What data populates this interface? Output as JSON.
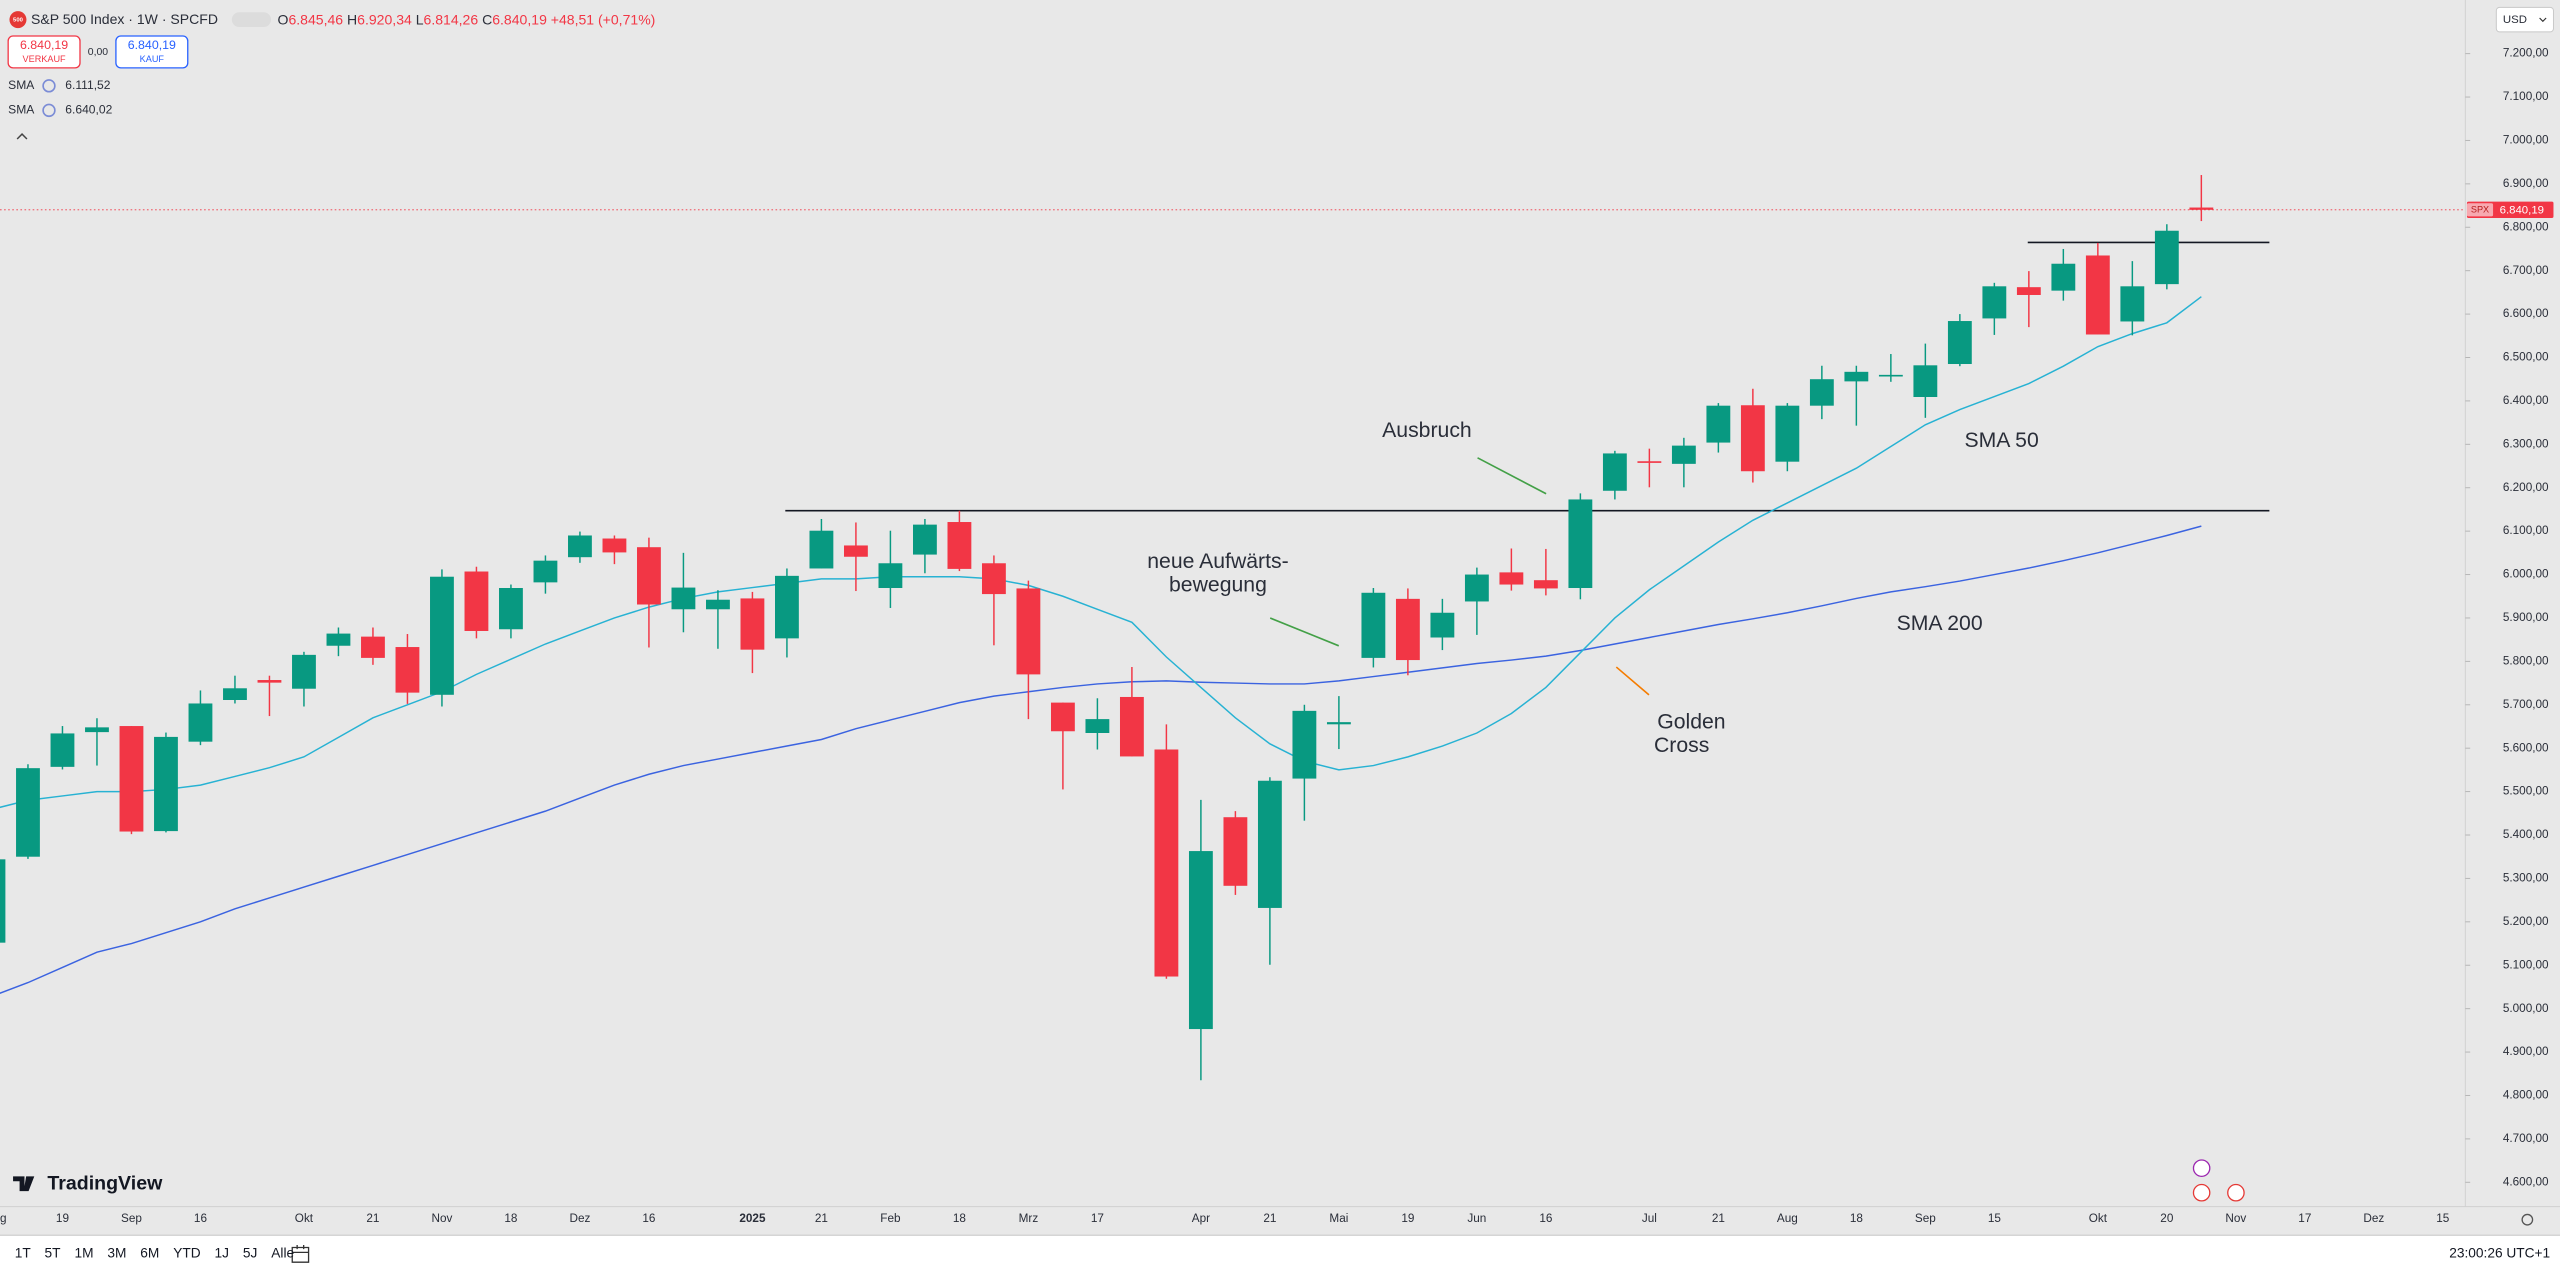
{
  "header": {
    "title": "S&P 500 Index · 1W · SPCFD",
    "ohlc": [
      {
        "key": "O",
        "value": "6.845,46"
      },
      {
        "key": "H",
        "value": "6.920,34"
      },
      {
        "key": "L",
        "value": "6.814,26"
      },
      {
        "key": "C",
        "value": "6.840,19"
      }
    ],
    "change": "+48,51 (+0,71%)",
    "sell": {
      "price": "6.840,19",
      "label": "VERKAUF"
    },
    "spread": "0,00",
    "buy": {
      "price": "6.840,19",
      "label": "KAUF"
    },
    "currency": "USD"
  },
  "brand": "TradingView",
  "toolbar": {
    "ranges": [
      "1T",
      "5T",
      "1M",
      "3M",
      "6M",
      "YTD",
      "1J",
      "5J",
      "Alle"
    ],
    "time": "23:00:26 UTC+1"
  },
  "chart_data": {
    "type": "candlestick",
    "categories": [
      "g",
      null,
      "19",
      null,
      "Sep",
      null,
      "16",
      null,
      null,
      "Okt",
      null,
      "21",
      null,
      "Nov",
      null,
      "18",
      null,
      "Dez",
      null,
      "16",
      null,
      null,
      "2025",
      null,
      "21",
      null,
      "Feb",
      null,
      "18",
      null,
      "Mrz",
      null,
      "17",
      null,
      null,
      "Apr",
      null,
      "21",
      null,
      "Mai",
      null,
      "19",
      null,
      "Jun",
      null,
      "16",
      null,
      null,
      "Jul",
      null,
      "21",
      null,
      "Aug",
      null,
      "18",
      null,
      "Sep",
      null,
      "15",
      null,
      null,
      "Okt",
      null,
      "20",
      null,
      "Nov",
      null,
      "17",
      null,
      "Dez",
      null,
      "15"
    ],
    "open": [
      5152,
      5350,
      5557,
      5637,
      5651,
      5409,
      5615,
      5711,
      5757,
      5737,
      5836,
      5857,
      5833,
      5723,
      6007,
      5874,
      5982,
      6040,
      6083,
      6063,
      5920,
      5920,
      5945,
      5853,
      6014,
      6067,
      5969,
      6046,
      6121,
      6026,
      5968,
      5705,
      5635,
      5718,
      5597,
      4953,
      5441,
      5232,
      5530,
      5655,
      5808,
      5944,
      5855,
      5938,
      6005,
      5987,
      5969,
      6193,
      6261,
      6255,
      6304,
      6390,
      6260,
      6389,
      6445,
      6457,
      6409,
      6485,
      6590,
      6662,
      6654,
      6735,
      6583,
      6669,
      6845.46,
      null,
      null,
      null,
      null,
      null,
      null,
      null
    ],
    "high": [
      5364,
      5563,
      5651,
      5669,
      5651,
      5636,
      5733,
      5767,
      5767,
      5822,
      5878,
      5878,
      5863,
      6012,
      6018,
      5977,
      6044,
      6099,
      6090,
      6085,
      6050,
      5964,
      5960,
      6014,
      6128,
      6120,
      6101,
      6128,
      6147,
      6044,
      5986,
      5705,
      5715,
      5787,
      5655,
      5481,
      5455,
      5533,
      5700,
      5720,
      5969,
      5968,
      5944,
      6016,
      6060,
      6059,
      6187,
      6285,
      6290,
      6315,
      6395,
      6428,
      6395,
      6481,
      6481,
      6508,
      6532,
      6600,
      6672,
      6699,
      6750,
      6764,
      6722,
      6807,
      6920.34,
      null,
      null,
      null,
      null,
      null,
      null,
      null
    ],
    "low": [
      5119,
      5345,
      5551,
      5560,
      5402,
      5406,
      5607,
      5703,
      5674,
      5696,
      5812,
      5792,
      5702,
      5696,
      5853,
      5853,
      5956,
      6027,
      6024,
      5832,
      5867,
      5829,
      5773,
      5809,
      6014,
      5962,
      5923,
      6003,
      6008,
      5837,
      5667,
      5505,
      5597,
      5581,
      5069,
      4835,
      5262,
      5101,
      5433,
      5598,
      5786,
      5768,
      5826,
      5861,
      5963,
      5952,
      5943,
      6173,
      6201,
      6201,
      6281,
      6212,
      6238,
      6358,
      6343,
      6444,
      6361,
      6480,
      6552,
      6570,
      6631,
      6553,
      6551,
      6657,
      6814.26,
      null,
      null,
      null,
      null,
      null,
      null,
      null
    ],
    "close": [
      5344,
      5554,
      5634,
      5648,
      5408,
      5626,
      5703,
      5738,
      5751,
      5815,
      5864,
      5808,
      5728,
      5995,
      5870,
      5969,
      6032,
      6090,
      6051,
      5931,
      5970,
      5942,
      5827,
      5997,
      6101,
      6041,
      6026,
      6115,
      6013,
      5955,
      5770,
      5639,
      5667,
      5581,
      5074,
      5363,
      5283,
      5525,
      5686,
      5660,
      5958,
      5803,
      5912,
      6000,
      5977,
      5968,
      6173,
      6279,
      6260,
      6297,
      6389,
      6238,
      6389,
      6450,
      6467,
      6460,
      6482,
      6584,
      6664,
      6644,
      6716,
      6553,
      6664,
      6792,
      6840.19,
      null,
      null,
      null,
      null,
      null,
      null,
      null
    ],
    "up_color": "#089981",
    "down_color": "#f23645",
    "overlays": [
      {
        "name": "SMA",
        "color": "#3b63e0",
        "value_label": "6.111,52",
        "values": [
          5030,
          5060,
          5095,
          5130,
          5150,
          5175,
          5200,
          5230,
          5255,
          5280,
          5305,
          5330,
          5355,
          5380,
          5405,
          5430,
          5455,
          5485,
          5515,
          5540,
          5560,
          5575,
          5590,
          5605,
          5620,
          5645,
          5665,
          5685,
          5705,
          5720,
          5730,
          5740,
          5748,
          5753,
          5755,
          5752,
          5750,
          5748,
          5748,
          5755,
          5765,
          5775,
          5785,
          5795,
          5803,
          5812,
          5825,
          5840,
          5855,
          5870,
          5885,
          5898,
          5912,
          5928,
          5945,
          5960,
          5972,
          5985,
          6000,
          6015,
          6032,
          6050,
          6070,
          6090,
          6111.52,
          null,
          null,
          null,
          null,
          null,
          null,
          null
        ]
      },
      {
        "name": "SMA",
        "color": "#27b2d3",
        "value_label": "6.640,02",
        "values": [
          5460,
          5480,
          5490,
          5500,
          5500,
          5505,
          5515,
          5535,
          5555,
          5580,
          5625,
          5670,
          5700,
          5730,
          5770,
          5805,
          5840,
          5870,
          5900,
          5925,
          5945,
          5960,
          5970,
          5980,
          5990,
          5990,
          5995,
          5995,
          5995,
          5990,
          5975,
          5950,
          5920,
          5890,
          5810,
          5740,
          5670,
          5610,
          5570,
          5550,
          5560,
          5580,
          5605,
          5635,
          5680,
          5740,
          5820,
          5900,
          5965,
          6020,
          6075,
          6125,
          6165,
          6205,
          6245,
          6295,
          6345,
          6380,
          6410,
          6440,
          6480,
          6525,
          6555,
          6580,
          6640.02,
          null,
          null,
          null,
          null,
          null,
          null,
          null
        ]
      }
    ],
    "levels": [
      {
        "value": 6147,
        "color": "#131722"
      },
      {
        "value": 6765,
        "color": "#131722"
      }
    ],
    "price_line": {
      "value": 6840.19,
      "label": "6.840,19",
      "symbol": "SPX",
      "color": "#f23645"
    },
    "annotations": [
      {
        "lines": [
          "Ausbruch"
        ],
        "color": "#43a047"
      },
      {
        "lines": [
          "neue Aufwärts-",
          "bewegung"
        ],
        "color": "#43a047"
      },
      {
        "lines": [
          "SMA 50"
        ],
        "color": "#1fb0d1"
      },
      {
        "lines": [
          "SMA 200"
        ],
        "color": "#2f5fe0"
      },
      {
        "lines": [
          "Golden",
          "Cross"
        ],
        "color": "#f57c00"
      }
    ],
    "ylim": [
      4544,
      7316
    ],
    "yticks": [
      {
        "value": 7200,
        "label": "7.200,00"
      },
      {
        "value": 7100,
        "label": "7.100,00"
      },
      {
        "value": 7000,
        "label": "7.000,00"
      },
      {
        "value": 6900,
        "label": "6.900,00"
      },
      {
        "value": 6800,
        "label": "6.800,00"
      },
      {
        "value": 6700,
        "label": "6.700,00"
      },
      {
        "value": 6600,
        "label": "6.600,00"
      },
      {
        "value": 6500,
        "label": "6.500,00"
      },
      {
        "value": 6400,
        "label": "6.400,00"
      },
      {
        "value": 6300,
        "label": "6.300,00"
      },
      {
        "value": 6200,
        "label": "6.200,00"
      },
      {
        "value": 6100,
        "label": "6.100,00"
      },
      {
        "value": 6000,
        "label": "6.000,00"
      },
      {
        "value": 5900,
        "label": "5.900,00"
      },
      {
        "value": 5800,
        "label": "5.800,00"
      },
      {
        "value": 5700,
        "label": "5.700,00"
      },
      {
        "value": 5600,
        "label": "5.600,00"
      },
      {
        "value": 5500,
        "label": "5.500,00"
      },
      {
        "value": 5400,
        "label": "5.400,00"
      },
      {
        "value": 5300,
        "label": "5.300,00"
      },
      {
        "value": 5200,
        "label": "5.200,00"
      },
      {
        "value": 5100,
        "label": "5.100,00"
      },
      {
        "value": 5000,
        "label": "5.000,00"
      },
      {
        "value": 4900,
        "label": "4.900,00"
      },
      {
        "value": 4800,
        "label": "4.800,00"
      },
      {
        "value": 4700,
        "label": "4.700,00"
      },
      {
        "value": 4600,
        "label": "4.600,00"
      }
    ]
  }
}
